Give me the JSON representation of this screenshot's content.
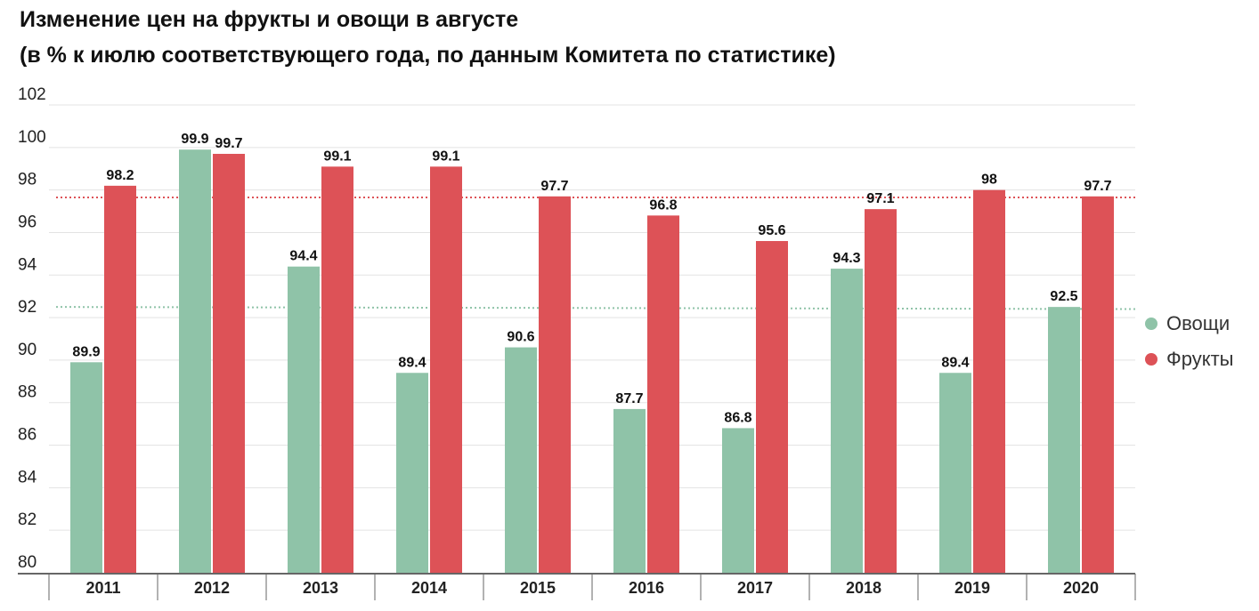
{
  "chart_data": {
    "type": "bar",
    "title": "Изменение цен на фрукты и овощи в августе",
    "subtitle": "(в % к июлю соответствующего года, по данным Комитета по статистике)",
    "categories": [
      "2011",
      "2012",
      "2013",
      "2014",
      "2015",
      "2016",
      "2017",
      "2018",
      "2019",
      "2020"
    ],
    "series": [
      {
        "name": "Овощи",
        "color": "#8fc3a8",
        "values": [
          89.9,
          99.9,
          94.4,
          89.4,
          90.6,
          87.7,
          86.8,
          94.3,
          89.4,
          92.5
        ]
      },
      {
        "name": "Фрукты",
        "color": "#dd5257",
        "values": [
          98.2,
          99.7,
          99.1,
          99.1,
          97.7,
          96.8,
          95.6,
          97.1,
          98,
          97.7
        ]
      }
    ],
    "labels": {
      "vegetables": [
        "89.9",
        "99.9",
        "94.4",
        "89.4",
        "90.6",
        "87.7",
        "86.8",
        "94.3",
        "89.4",
        "92.5"
      ],
      "fruits": [
        "98.2",
        "99.7",
        "99.1",
        "99.1",
        "97.7",
        "96.8",
        "95.6",
        "97.1",
        "98",
        "97.7"
      ]
    },
    "ylim": [
      80,
      102
    ],
    "yticks": [
      "80",
      "82",
      "84",
      "86",
      "88",
      "90",
      "92",
      "94",
      "96",
      "98",
      "100",
      "102"
    ],
    "trendlines": [
      {
        "series": "Овощи",
        "start": 92.5,
        "end": 92.4,
        "color": "#8fc3a8"
      },
      {
        "series": "Фрукты",
        "start": 97.65,
        "end": 97.65,
        "color": "#dd5257"
      }
    ],
    "grid": true,
    "legend_position": "right"
  }
}
